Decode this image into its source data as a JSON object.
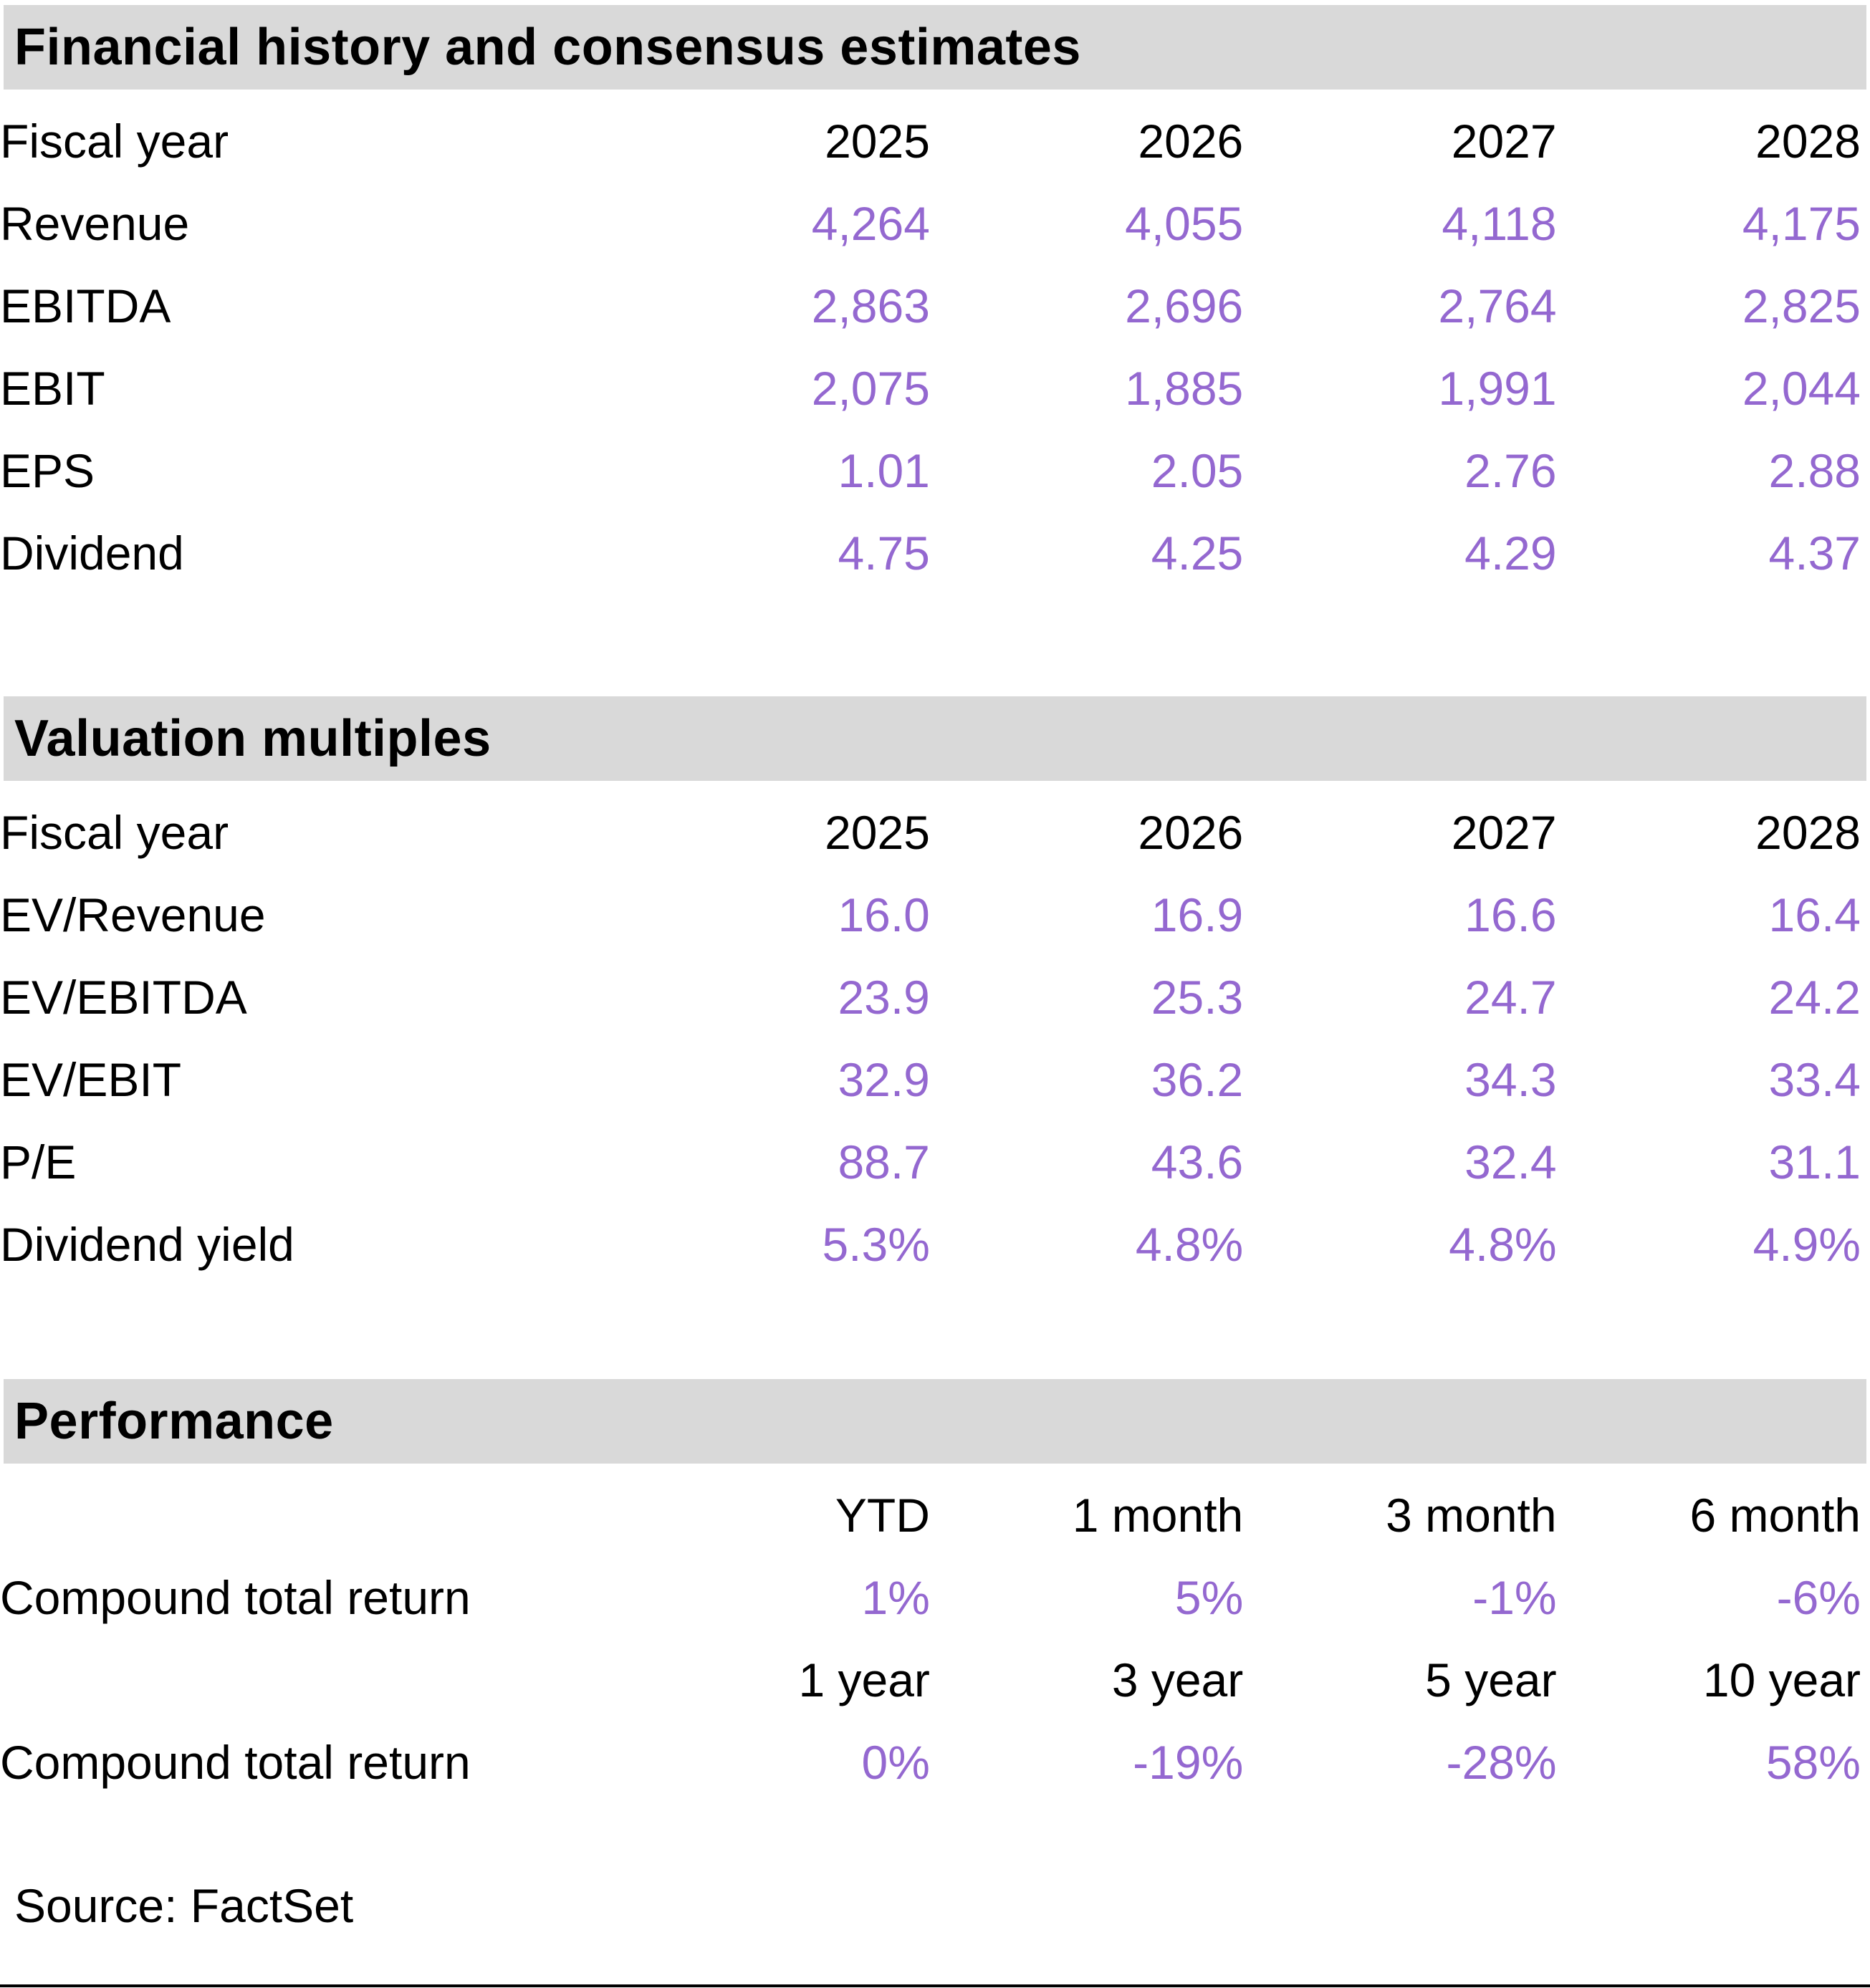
{
  "colors": {
    "accent_purple": "#9468d0",
    "header_bar_gray": "#d9d9d9",
    "text_black": "#000000"
  },
  "sections": [
    {
      "title": "Financial history and consensus estimates",
      "rows": [
        {
          "label": "Fiscal year",
          "values": [
            "2025",
            "2026",
            "2027",
            "2028"
          ],
          "kind": "header"
        },
        {
          "label": "Revenue",
          "values": [
            "4,264",
            "4,055",
            "4,118",
            "4,175"
          ],
          "kind": "data"
        },
        {
          "label": "EBITDA",
          "values": [
            "2,863",
            "2,696",
            "2,764",
            "2,825"
          ],
          "kind": "data"
        },
        {
          "label": "EBIT",
          "values": [
            "2,075",
            "1,885",
            "1,991",
            "2,044"
          ],
          "kind": "data"
        },
        {
          "label": "EPS",
          "values": [
            "1.01",
            "2.05",
            "2.76",
            "2.88"
          ],
          "kind": "data"
        },
        {
          "label": "Dividend",
          "values": [
            "4.75",
            "4.25",
            "4.29",
            "4.37"
          ],
          "kind": "data"
        }
      ]
    },
    {
      "title": "Valuation multiples",
      "rows": [
        {
          "label": "Fiscal year",
          "values": [
            "2025",
            "2026",
            "2027",
            "2028"
          ],
          "kind": "header"
        },
        {
          "label": "EV/Revenue",
          "values": [
            "16.0",
            "16.9",
            "16.6",
            "16.4"
          ],
          "kind": "data"
        },
        {
          "label": "EV/EBITDA",
          "values": [
            "23.9",
            "25.3",
            "24.7",
            "24.2"
          ],
          "kind": "data"
        },
        {
          "label": "EV/EBIT",
          "values": [
            "32.9",
            "36.2",
            "34.3",
            "33.4"
          ],
          "kind": "data"
        },
        {
          "label": "P/E",
          "values": [
            "88.7",
            "43.6",
            "32.4",
            "31.1"
          ],
          "kind": "data"
        },
        {
          "label": "Dividend yield",
          "values": [
            "5.3%",
            "4.8%",
            "4.8%",
            "4.9%"
          ],
          "kind": "data"
        }
      ]
    },
    {
      "title": "Performance",
      "rows": [
        {
          "label": "",
          "values": [
            "YTD",
            "1 month",
            "3 month",
            "6 month"
          ],
          "kind": "header"
        },
        {
          "label": "Compound total return",
          "values": [
            "1%",
            "5%",
            "-1%",
            "-6%"
          ],
          "kind": "data"
        },
        {
          "label": "",
          "values": [
            "1 year",
            "3 year",
            "5 year",
            "10 year"
          ],
          "kind": "header"
        },
        {
          "label": "Compound total return",
          "values": [
            "0%",
            "-19%",
            "-28%",
            "58%"
          ],
          "kind": "data"
        }
      ]
    }
  ],
  "footer": {
    "source": "Source: FactSet"
  }
}
